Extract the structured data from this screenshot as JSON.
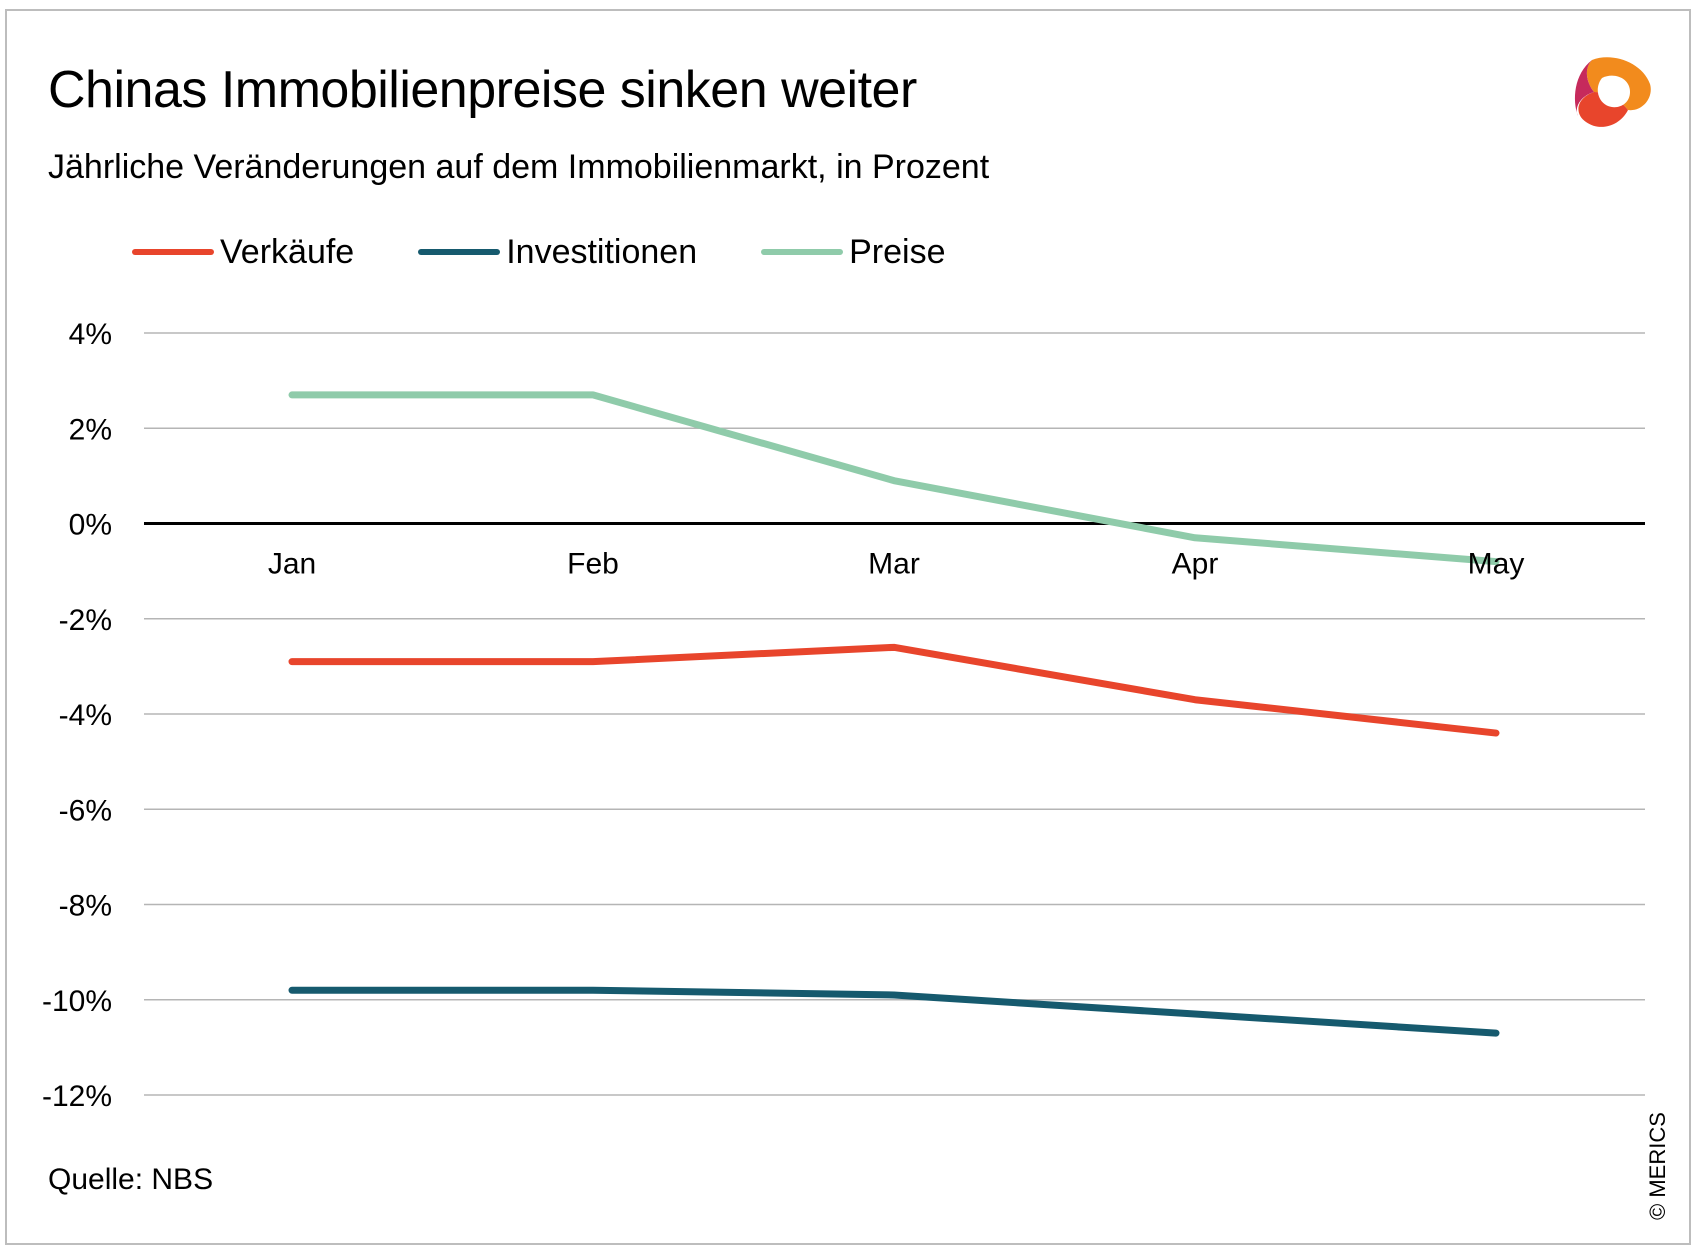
{
  "header": {
    "title": "Chinas Immobilienpreise sinken weiter",
    "subtitle": "Jährliche Veränderungen auf dem Immobilienmarkt, in Prozent"
  },
  "logo": {
    "icon": "merics-logo-icon",
    "colors": [
      "#e8452c",
      "#f28b1d",
      "#c62a5c",
      "#7a1f4e"
    ]
  },
  "footer": {
    "source": "Quelle: NBS",
    "copyright": "© MERICS"
  },
  "chart_data": {
    "type": "line",
    "categories": [
      "Jan",
      "Feb",
      "Mar",
      "Apr",
      "May"
    ],
    "series": [
      {
        "name": "Verkäufe",
        "color": "#e8452c",
        "values": [
          -2.9,
          -2.9,
          -2.6,
          -3.7,
          -4.4
        ]
      },
      {
        "name": "Investitionen",
        "color": "#165a6e",
        "values": [
          -9.8,
          -9.8,
          -9.9,
          -10.3,
          -10.7
        ]
      },
      {
        "name": "Preise",
        "color": "#8fcbaa",
        "values": [
          2.7,
          2.7,
          0.9,
          -0.3,
          -0.8
        ]
      }
    ],
    "ylim": [
      -12,
      4
    ],
    "yticks": [
      4,
      2,
      0,
      -2,
      -4,
      -6,
      -8,
      -10,
      -12
    ],
    "ytick_labels": [
      "4%",
      "2%",
      "0%",
      "-2%",
      "-4%",
      "-6%",
      "-8%",
      "-10%",
      "-12%"
    ],
    "grid": true,
    "zero_line": true,
    "legend": "top-left",
    "xlabel": "",
    "ylabel": ""
  }
}
